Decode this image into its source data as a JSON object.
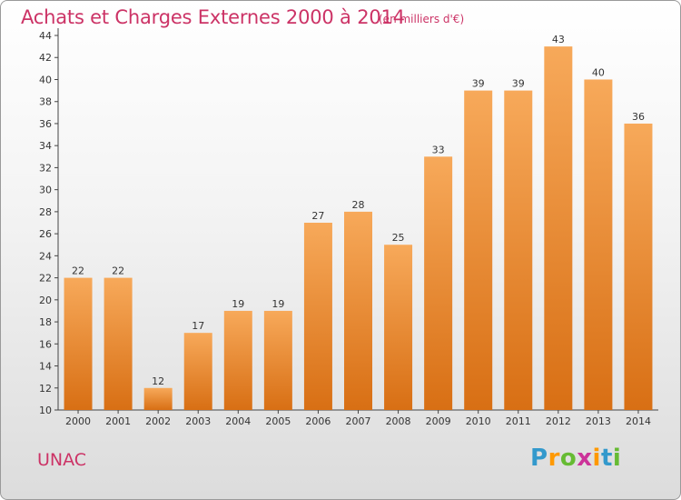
{
  "chart_data": {
    "type": "bar",
    "title": "Achats et Charges Externes 2000 à 2014",
    "subtitle": "(en milliers d'€)",
    "categories": [
      "2000",
      "2001",
      "2002",
      "2003",
      "2004",
      "2005",
      "2006",
      "2007",
      "2008",
      "2009",
      "2010",
      "2011",
      "2012",
      "2013",
      "2014"
    ],
    "values": [
      22,
      22,
      12,
      17,
      19,
      19,
      27,
      28,
      25,
      33,
      39,
      39,
      43,
      40,
      36
    ],
    "xlabel": "",
    "ylabel": "",
    "ylim": [
      10,
      44
    ],
    "yticks": [
      10,
      12,
      14,
      16,
      18,
      20,
      22,
      24,
      26,
      28,
      30,
      32,
      34,
      36,
      38,
      40,
      42,
      44
    ],
    "grid": false,
    "bar_color_top": "#f7a95a",
    "bar_color_bottom": "#d86f14"
  },
  "footer": {
    "commune": "UNAC",
    "logo_letters": [
      "P",
      "r",
      "o",
      "x",
      "i",
      "t",
      "i"
    ],
    "logo_colors": [
      "#3399cc",
      "#ff9900",
      "#66bb33",
      "#cc3399",
      "#ff9900",
      "#3399cc",
      "#66bb33"
    ]
  },
  "colors": {
    "accent": "#cc3366",
    "axis": "#444444"
  }
}
